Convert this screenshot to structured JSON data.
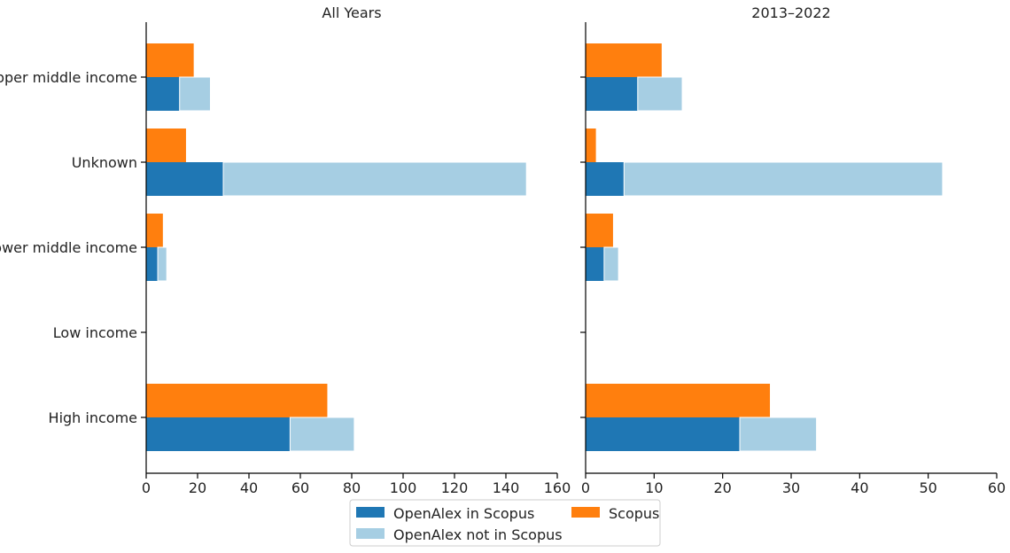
{
  "chart_data": {
    "type": "bar",
    "orientation": "horizontal",
    "stacked": "OpenAlex series stacked; Scopus drawn as separate bar above",
    "categories": [
      "High income",
      "Low income",
      "Lower middle income",
      "Unknown",
      "Upper middle income"
    ],
    "legend": {
      "placement": "bottom-center",
      "entries": [
        {
          "name": "OpenAlex in Scopus",
          "color": "#1f77b4"
        },
        {
          "name": "OpenAlex not in Scopus",
          "color": "#a6cee3"
        },
        {
          "name": "Scopus",
          "color": "#ff7f0e"
        }
      ]
    },
    "panels": [
      {
        "title": "All Years",
        "xlim": [
          0,
          160
        ],
        "xticks": [
          0,
          20,
          40,
          60,
          80,
          100,
          120,
          140,
          160
        ],
        "show_category_labels": true,
        "series": [
          {
            "name": "OpenAlex in Scopus",
            "values": [
              56,
              0,
              4.5,
              30,
              13
            ]
          },
          {
            "name": "OpenAlex not in Scopus",
            "values": [
              25,
              0,
              3.5,
              118,
              12
            ]
          },
          {
            "name": "Scopus",
            "values": [
              70.5,
              0,
              6.5,
              15.5,
              18.5
            ]
          }
        ]
      },
      {
        "title": "2013–2022",
        "xlim": [
          0,
          60
        ],
        "xticks": [
          0,
          10,
          20,
          30,
          40,
          50,
          60
        ],
        "show_category_labels": false,
        "series": [
          {
            "name": "OpenAlex in Scopus",
            "values": [
              22.5,
              0,
              2.7,
              5.6,
              7.6
            ]
          },
          {
            "name": "OpenAlex not in Scopus",
            "values": [
              11.2,
              0,
              2.1,
              46.5,
              6.5
            ]
          },
          {
            "name": "Scopus",
            "values": [
              26.9,
              0,
              4.0,
              1.5,
              11.1
            ]
          }
        ]
      }
    ]
  }
}
